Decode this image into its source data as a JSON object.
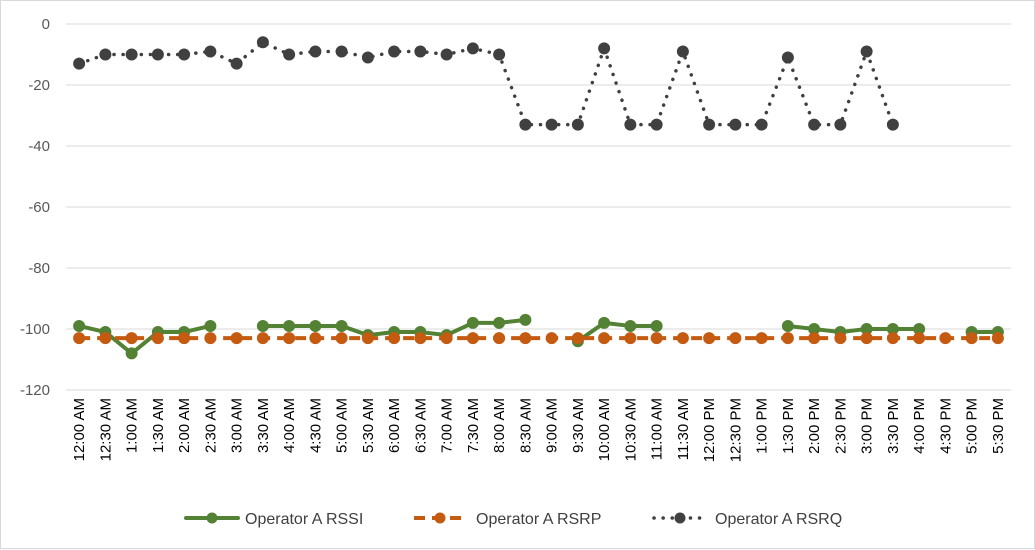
{
  "chart_data": {
    "type": "line",
    "title": "",
    "xlabel": "",
    "ylabel": "",
    "ylim": [
      -120,
      0
    ],
    "yticks": [
      0,
      -20,
      -40,
      -60,
      -80,
      -100,
      -120
    ],
    "grid": "horizontal",
    "legend_position": "bottom",
    "categories": [
      "12:00 AM",
      "12:30 AM",
      "1:00 AM",
      "1:30 AM",
      "2:00 AM",
      "2:30 AM",
      "3:00 AM",
      "3:30 AM",
      "4:00 AM",
      "4:30 AM",
      "5:00 AM",
      "5:30 AM",
      "6:00 AM",
      "6:30 AM",
      "7:00 AM",
      "7:30 AM",
      "8:00 AM",
      "8:30 AM",
      "9:00 AM",
      "9:30 AM",
      "10:00 AM",
      "10:30 AM",
      "11:00 AM",
      "11:30 AM",
      "12:00 PM",
      "12:30 PM",
      "1:00 PM",
      "1:30 PM",
      "2:00 PM",
      "2:30 PM",
      "3:00 PM",
      "3:30 PM",
      "4:00 PM",
      "4:30 PM",
      "5:00 PM",
      "5:30 PM"
    ],
    "series": [
      {
        "name": "Operator A RSSI",
        "color": "#548235",
        "style": "solid",
        "values": [
          -99,
          -101,
          -108,
          -101,
          -101,
          -99,
          null,
          -99,
          -99,
          -99,
          -99,
          -102,
          -101,
          -101,
          -102,
          -98,
          -98,
          -97,
          null,
          -104,
          -98,
          -99,
          -99,
          null,
          null,
          null,
          null,
          -99,
          -100,
          -101,
          -100,
          -100,
          -100,
          null,
          -101,
          -101
        ]
      },
      {
        "name": "Operator A RSRP",
        "color": "#c55a11",
        "style": "dash",
        "values": [
          -103,
          -103,
          -103,
          -103,
          -103,
          -103,
          -103,
          -103,
          -103,
          -103,
          -103,
          -103,
          -103,
          -103,
          -103,
          -103,
          -103,
          -103,
          -103,
          -103,
          -103,
          -103,
          -103,
          -103,
          -103,
          -103,
          -103,
          -103,
          -103,
          -103,
          -103,
          -103,
          -103,
          -103,
          -103,
          -103
        ]
      },
      {
        "name": "Operator A RSRQ",
        "color": "#404040",
        "style": "dot",
        "values": [
          -13,
          -10,
          -10,
          -10,
          -10,
          -9,
          -13,
          -6,
          -10,
          -9,
          -9,
          -11,
          -9,
          -9,
          -10,
          -8,
          -10,
          -33,
          -33,
          -33,
          -8,
          -33,
          -33,
          -9,
          -33,
          -33,
          -33,
          -11,
          -33,
          -33,
          -9,
          -33,
          null,
          null,
          null,
          null
        ]
      }
    ]
  }
}
